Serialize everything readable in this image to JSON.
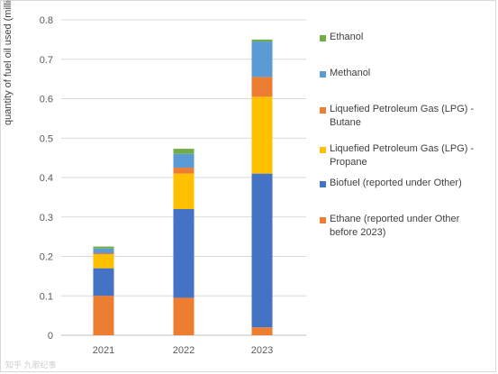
{
  "chart_data": {
    "type": "bar",
    "stacked": true,
    "categories": [
      "2021",
      "2022",
      "2023"
    ],
    "series": [
      {
        "name": "Ethane (reported under Other before 2023)",
        "color": "#ED7D31",
        "values": [
          0.1,
          0.095,
          0.02
        ]
      },
      {
        "name": "Biofuel (reported under Other)",
        "color": "#4472C4",
        "values": [
          0.07,
          0.225,
          0.39
        ]
      },
      {
        "name": "Liquefied Petroleum Gas (LPG) - Propane",
        "color": "#FFC000",
        "values": [
          0.035,
          0.09,
          0.195
        ]
      },
      {
        "name": "Liquefied Petroleum Gas (LPG) - Butane",
        "color": "#ED7D31",
        "values": [
          0.003,
          0.015,
          0.05
        ]
      },
      {
        "name": "Methanol",
        "color": "#5B9BD5",
        "values": [
          0.012,
          0.035,
          0.09
        ]
      },
      {
        "name": "Ethanol",
        "color": "#70AD47",
        "values": [
          0.005,
          0.013,
          0.005
        ]
      }
    ],
    "legend_order": [
      5,
      4,
      3,
      2,
      1,
      0
    ],
    "legend_position": "right",
    "ylabel": "quantity of fuel oil used (millions of tonnes)",
    "xlabel": "",
    "ylim": [
      0,
      0.8
    ],
    "yticks": [
      "0",
      "0.1",
      "0.2",
      "0.3",
      "0.4",
      "0.5",
      "0.6",
      "0.7",
      "0.8"
    ],
    "grid": "horizontal"
  },
  "watermark": "知乎 九歌纪事"
}
